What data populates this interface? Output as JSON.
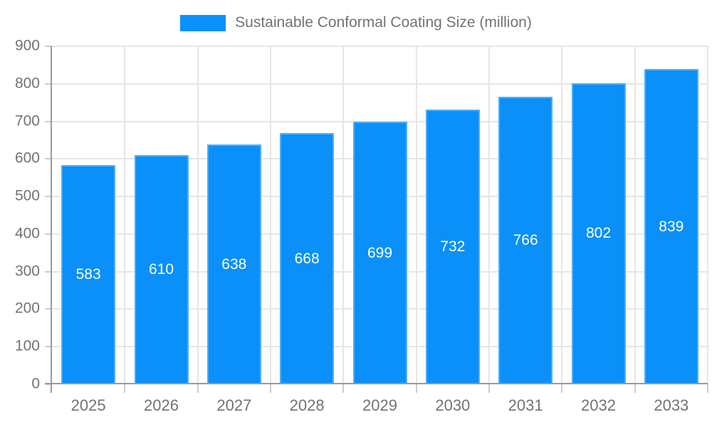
{
  "chart_data": {
    "type": "bar",
    "title": "Sustainable Conformal Coating Size (million)",
    "legend_position": "top",
    "categories": [
      "2025",
      "2026",
      "2027",
      "2028",
      "2029",
      "2030",
      "2031",
      "2032",
      "2033"
    ],
    "values": [
      583,
      610,
      638,
      668,
      699,
      732,
      766,
      802,
      839
    ],
    "xlabel": "",
    "ylabel": "",
    "ylim": [
      0,
      900
    ],
    "yticks": [
      0,
      100,
      200,
      300,
      400,
      500,
      600,
      700,
      800,
      900
    ],
    "grid": true,
    "bar_labels_shown": true,
    "colors": {
      "bar": "#0a90f8",
      "bar_label": "#ffffff",
      "grid_line": "#e6e6e6",
      "tick_line": "#cccccc",
      "axis_line": "#9a9a9a",
      "text": "#737373",
      "background": "#ffffff"
    }
  }
}
